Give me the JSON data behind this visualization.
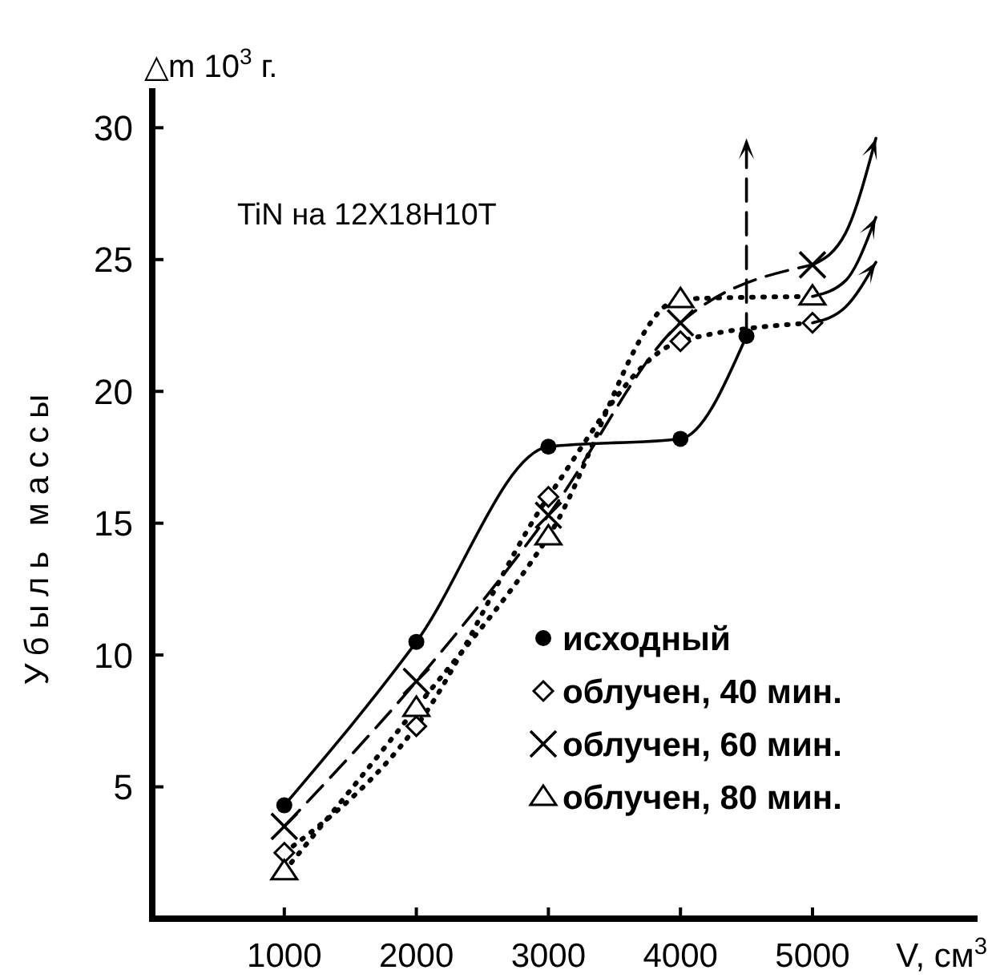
{
  "chart_data": {
    "type": "line",
    "ylabel": "Убыль массы",
    "xlabel": "V, см$^{3}$",
    "annotations": [
      "△m 10$^{3}$ г.",
      "TiN на 12X18H10T"
    ],
    "xlim": [
      0,
      6250
    ],
    "xticks": [
      1000,
      2000,
      3000,
      4000,
      5000
    ],
    "ylim": [
      0,
      31.5
    ],
    "yticks": [
      5,
      10,
      15,
      20,
      25,
      30
    ],
    "grid": false,
    "legend": "bottom right",
    "series": [
      {
        "name": "исходный",
        "color": "#000000",
        "marker": "circle",
        "line_style": "solid",
        "x": [
          1000,
          2000,
          3000,
          4000,
          4500
        ],
        "values": [
          4.3,
          10.5,
          17.9,
          18.2,
          22.1
        ]
      },
      {
        "name": "облучен, 40 мин.",
        "color": "#000000",
        "marker": "diamond",
        "line_style": "dotted",
        "x": [
          1000,
          2000,
          3000,
          4000,
          5000
        ],
        "values": [
          2.5,
          7.3,
          16.0,
          21.9,
          22.6
        ]
      },
      {
        "name": "облучен, 60 мин.",
        "color": "#000000",
        "marker": "cross",
        "line_style": "dashed",
        "x": [
          1000,
          2000,
          3000,
          4000,
          5000
        ],
        "values": [
          3.5,
          9.0,
          15.3,
          22.6,
          24.8
        ]
      },
      {
        "name": "облучен, 80 мин.",
        "color": "#000000",
        "marker": "triangle",
        "line_style": "dotted",
        "x": [
          1000,
          2000,
          3000,
          4000,
          5000
        ],
        "values": [
          1.8,
          8.0,
          14.5,
          23.5,
          23.6
        ]
      },
      {
        "type": "line",
        "color": "#000000",
        "marker": "none",
        "line_style": "dashed",
        "x": [
          4500,
          4500
        ],
        "values": [
          22.1,
          29.6
        ]
      },
      {
        "type": "line",
        "color": "#000000",
        "marker": "none",
        "line_style": "solid",
        "x": [
          5000,
          5250,
          5480
        ],
        "values": [
          22.6,
          23.2,
          24.9
        ]
      },
      {
        "type": "line",
        "color": "#000000",
        "marker": "none",
        "line_style": "solid",
        "x": [
          5000,
          5250,
          5480
        ],
        "values": [
          24.8,
          26.0,
          29.6
        ]
      },
      {
        "type": "line",
        "color": "#000000",
        "marker": "none",
        "line_style": "solid",
        "x": [
          5000,
          5250,
          5480
        ],
        "values": [
          23.6,
          24.2,
          26.6
        ]
      }
    ]
  }
}
